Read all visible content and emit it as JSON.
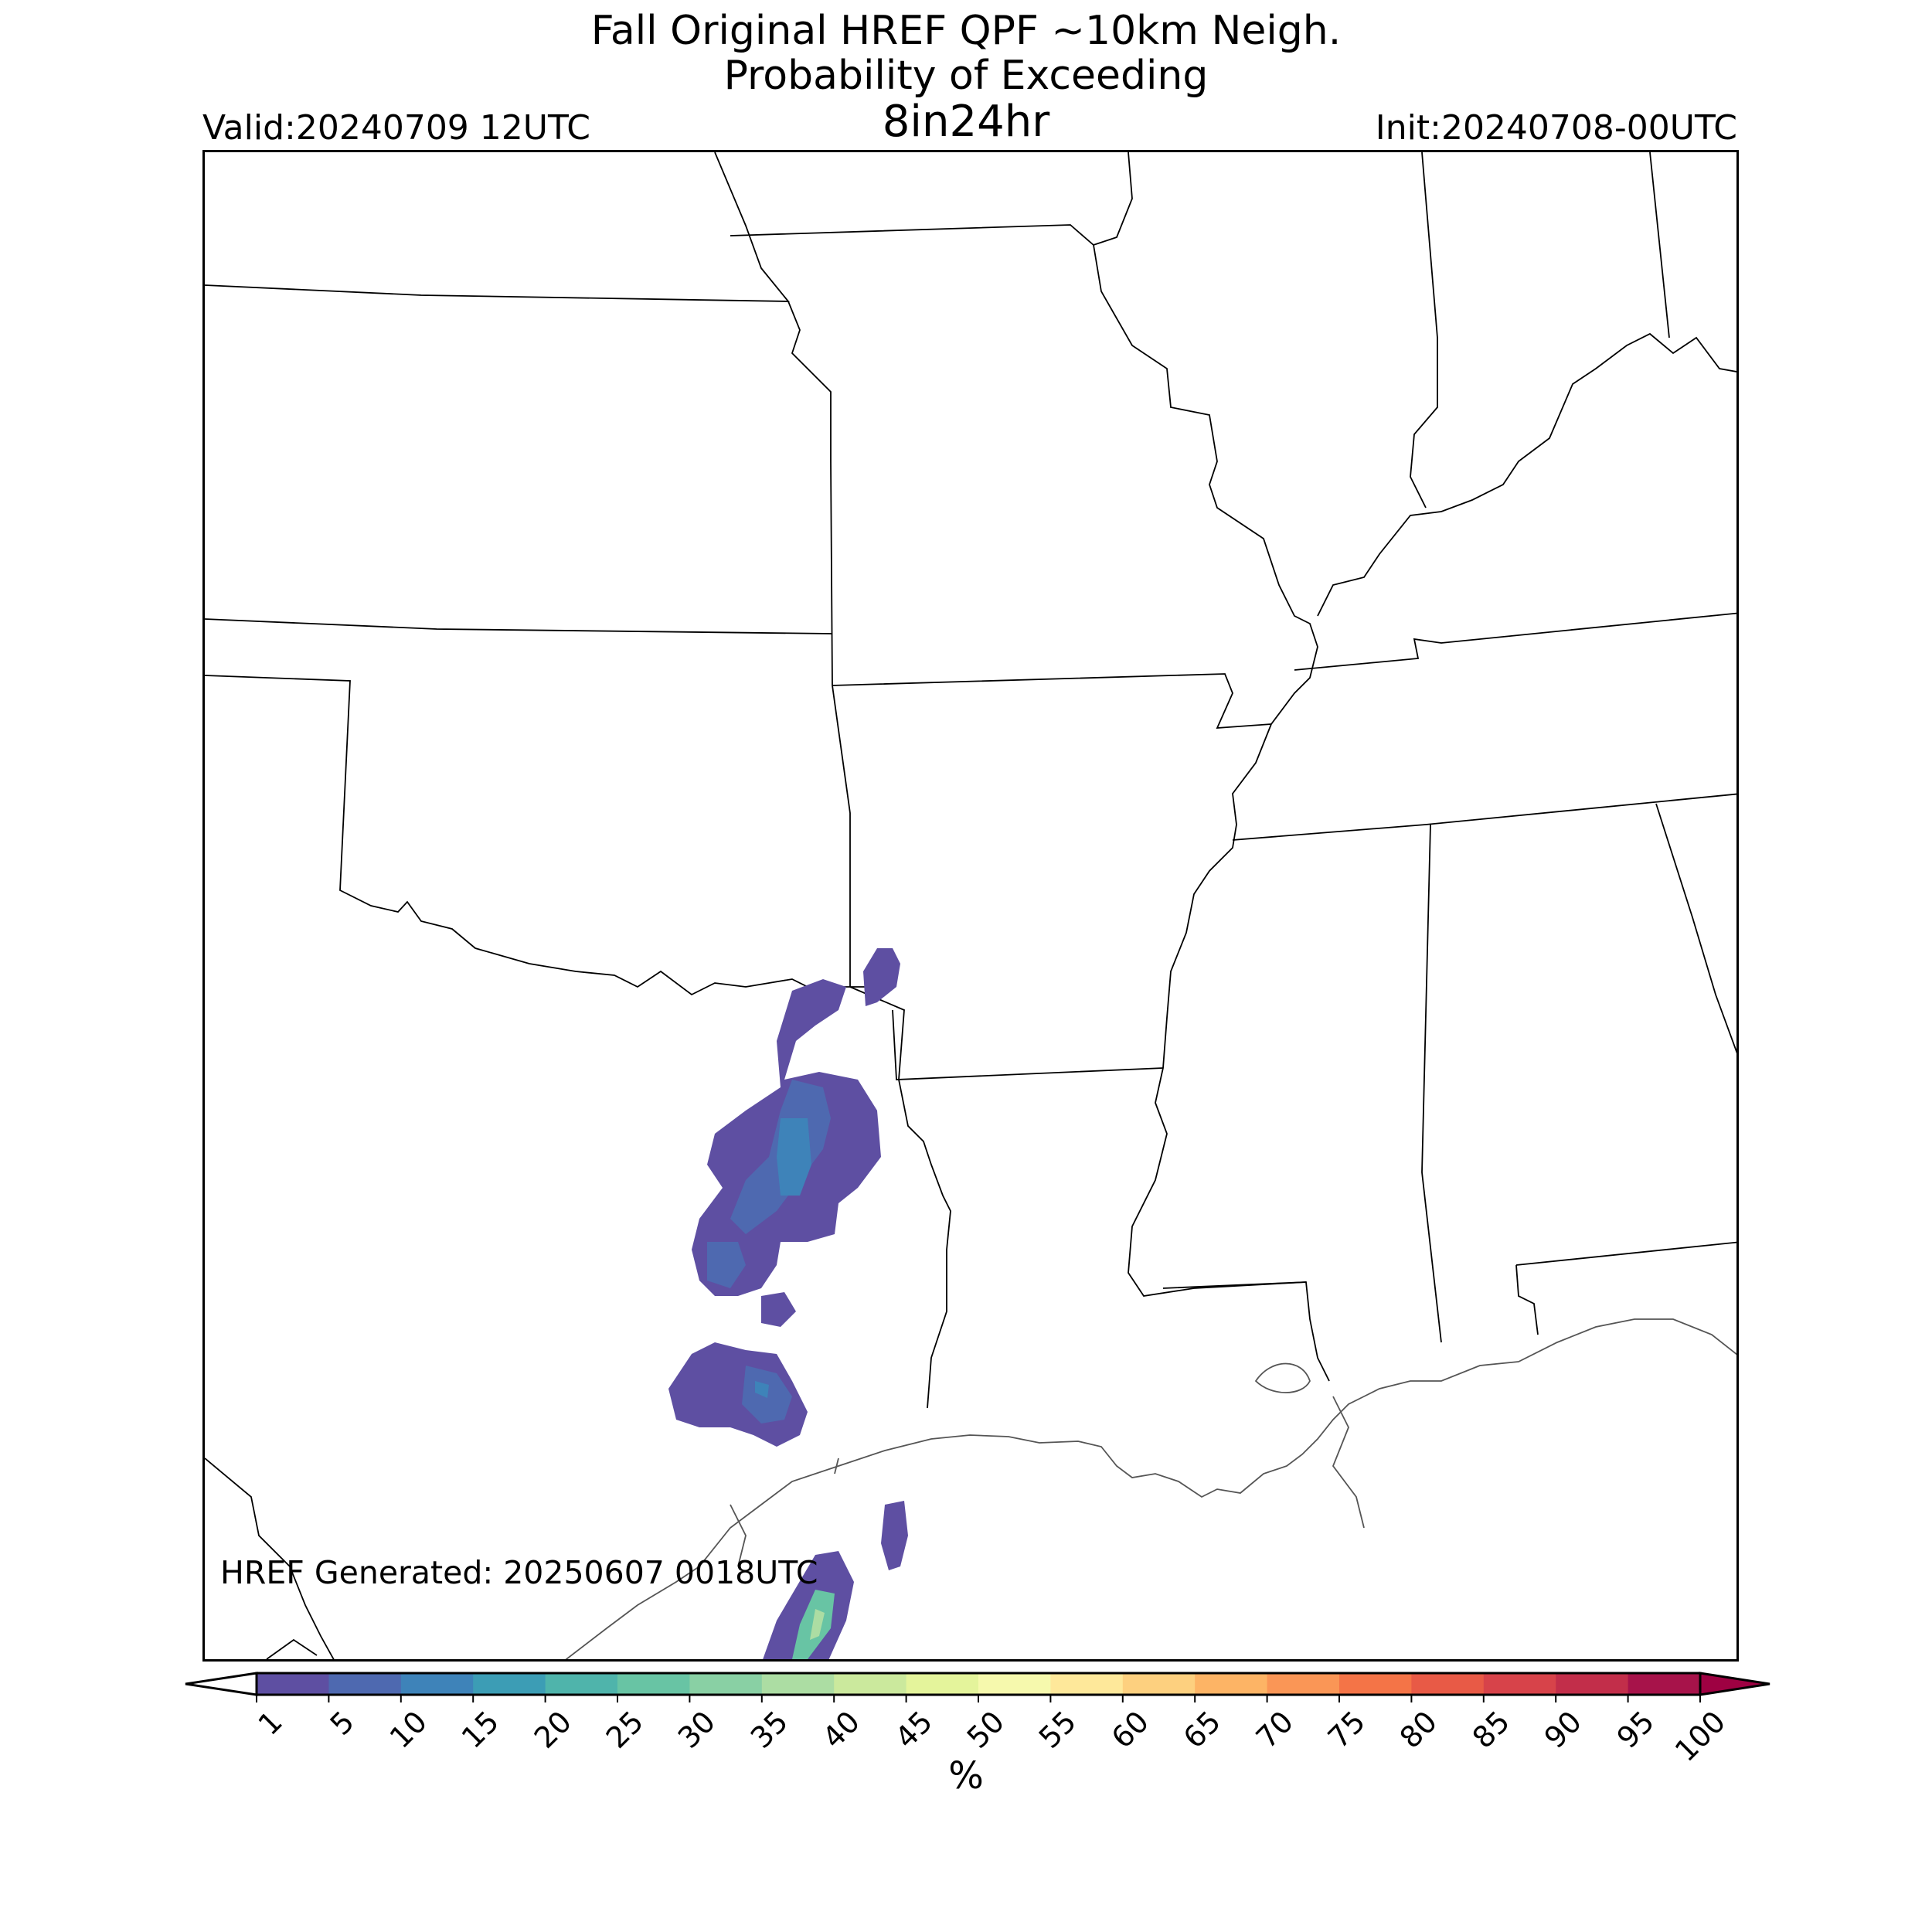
{
  "title": {
    "line1": "Fall Original HREF QPF ~10km Neigh.",
    "line2": "Probability of Exceeding",
    "line3": "8in24hr"
  },
  "valid": "Valid:20240709 12UTC",
  "init": "Init:20240708-00UTC",
  "generated": "HREF Generated: 20250607 0018UTC",
  "colorbar": {
    "ticks": [
      "1",
      "5",
      "10",
      "15",
      "20",
      "25",
      "30",
      "35",
      "40",
      "45",
      "50",
      "55",
      "60",
      "65",
      "70",
      "75",
      "80",
      "85",
      "90",
      "95",
      "100"
    ],
    "colors": [
      "#5e4fa2",
      "#4e69b0",
      "#3e83b9",
      "#3c9db5",
      "#4fb4ab",
      "#68c4a4",
      "#89d0a4",
      "#acdda3",
      "#cbe99d",
      "#e4f49b",
      "#f6f9ad",
      "#fee89a",
      "#fdd07f",
      "#fdb465",
      "#fa9656",
      "#f47447",
      "#e85a46",
      "#d7434a",
      "#c22e4a",
      "#a7134a"
    ],
    "extend_low": "#ffffff",
    "extend_high": "#9e0142",
    "unit": "%"
  }
}
